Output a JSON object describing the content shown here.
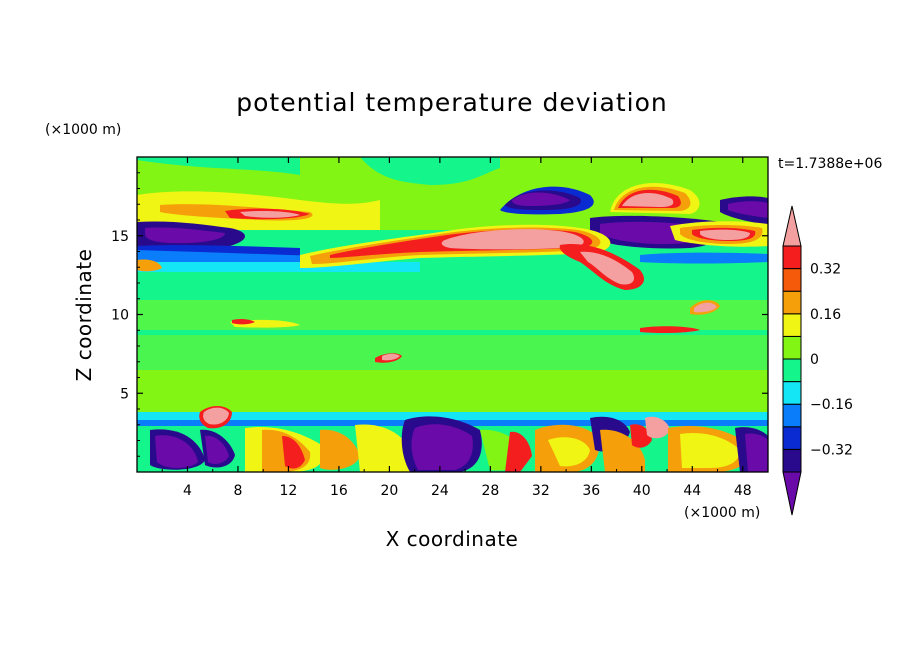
{
  "chart_data": {
    "type": "heatmap",
    "title": "potential temperature deviation",
    "xlabel": "X coordinate",
    "ylabel": "Z coordinate",
    "x_unit": "(×1000 m)",
    "y_unit": "(×1000 m)",
    "time_label": "t=1.7388e+06",
    "xlim": [
      0,
      50
    ],
    "ylim": [
      0,
      20
    ],
    "x_ticks": [
      4,
      8,
      12,
      16,
      20,
      24,
      28,
      32,
      36,
      40,
      44,
      48
    ],
    "y_ticks": [
      5,
      10,
      15
    ],
    "colorbar": {
      "colors": [
        "#6a0aa8",
        "#2a0a8c",
        "#0a2ad2",
        "#0a7dfa",
        "#14e6f5",
        "#14f58c",
        "#82f514",
        "#f0f514",
        "#f5a00a",
        "#f55a0a",
        "#f51e1e",
        "#f5a0a0"
      ],
      "tick_labels": [
        "0.32",
        "0.16",
        "0",
        "−0.16",
        "−0.32"
      ],
      "tick_values": [
        0.32,
        0.16,
        0,
        -0.16,
        -0.32
      ]
    }
  }
}
